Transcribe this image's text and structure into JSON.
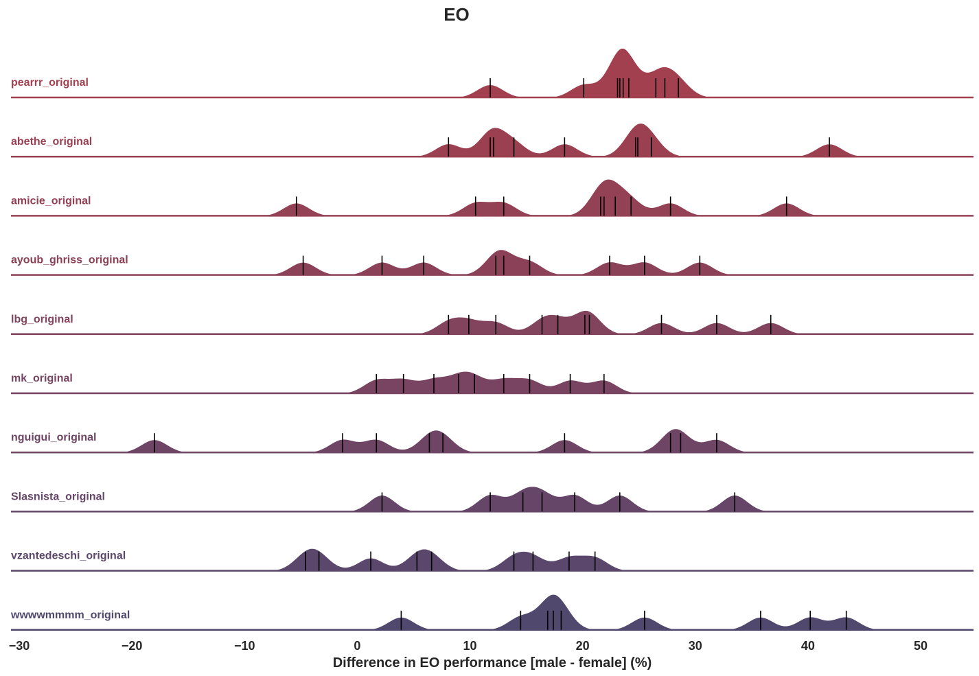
{
  "chart_data": {
    "type": "ridgeline",
    "title": "EO",
    "xlabel": "Difference in EO performance [male - female] (%)",
    "ylabel": "",
    "xlim": [
      -30,
      55
    ],
    "xticks": [
      -30,
      -20,
      -10,
      0,
      10,
      20,
      30,
      40,
      50
    ],
    "xtick_labels": [
      "−30",
      "−20",
      "−10",
      "0",
      "10",
      "20",
      "30",
      "40",
      "50"
    ],
    "grid": false,
    "rug": true,
    "series": [
      {
        "name": "pearrr_original",
        "color": "#a2404f",
        "values": [
          11.8,
          20.1,
          23.1,
          23.3,
          23.6,
          24.1,
          26.5,
          27.3,
          28.5
        ]
      },
      {
        "name": "abethe_original",
        "color": "#9b4051",
        "values": [
          8.1,
          11.8,
          12.1,
          13.9,
          18.4,
          24.7,
          24.9,
          26.1,
          41.9
        ]
      },
      {
        "name": "amicie_original",
        "color": "#934155",
        "values": [
          -5.4,
          10.5,
          13.0,
          21.6,
          21.9,
          22.9,
          24.3,
          27.8,
          38.1
        ]
      },
      {
        "name": "ayoub_ghriss_original",
        "color": "#8b4259",
        "values": [
          -4.8,
          2.2,
          5.9,
          12.3,
          13.0,
          15.3,
          22.4,
          25.5,
          30.4
        ]
      },
      {
        "name": "lbg_original",
        "color": "#82435d",
        "values": [
          8.1,
          9.9,
          12.3,
          16.4,
          17.8,
          20.2,
          20.6,
          27.0,
          31.9,
          36.7
        ]
      },
      {
        "name": "mk_original",
        "color": "#794461",
        "values": [
          1.7,
          4.1,
          6.8,
          9.0,
          10.4,
          13.0,
          15.3,
          18.9,
          21.9
        ]
      },
      {
        "name": "nguigui_original",
        "color": "#6f4565",
        "values": [
          -18.0,
          -1.3,
          1.7,
          6.4,
          7.6,
          18.4,
          27.8,
          28.7,
          31.9
        ]
      },
      {
        "name": "Slasnista_original",
        "color": "#654668",
        "values": [
          2.2,
          11.8,
          14.7,
          16.4,
          19.3,
          23.3,
          33.5
        ]
      },
      {
        "name": "vzantedeschi_original",
        "color": "#5a476b",
        "values": [
          -4.6,
          -3.4,
          1.2,
          5.3,
          6.6,
          13.9,
          15.6,
          18.8,
          21.1
        ]
      },
      {
        "name": "wwwwmmmm_original",
        "color": "#50486d",
        "values": [
          3.9,
          14.5,
          16.9,
          17.4,
          18.1,
          25.5,
          35.8,
          40.2,
          43.4
        ]
      }
    ]
  }
}
